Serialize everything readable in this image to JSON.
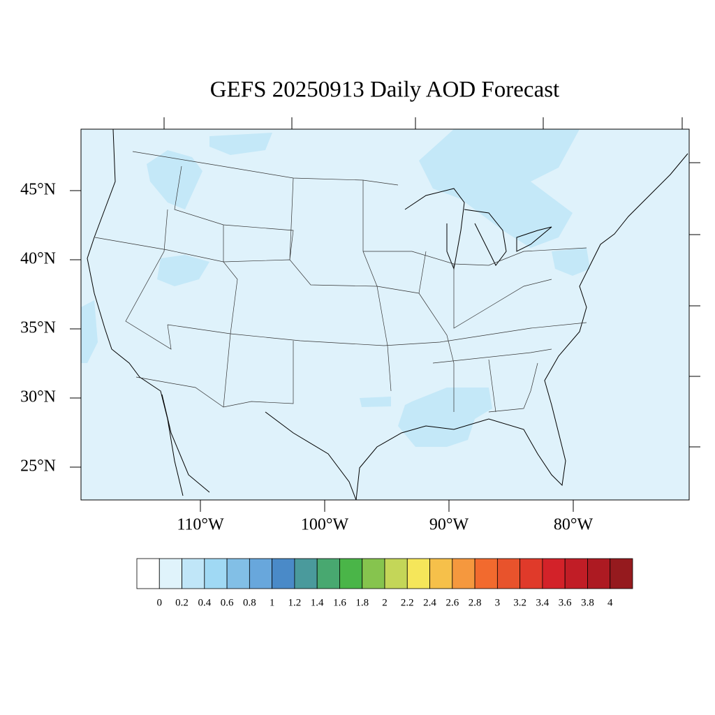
{
  "title": "GEFS 20250913 Daily AOD Forecast",
  "map": {
    "lat_labels": [
      "45°N",
      "40°N",
      "35°N",
      "30°N",
      "25°N"
    ],
    "lon_labels": [
      "110°W",
      "100°W",
      "90°W",
      "80°W"
    ]
  },
  "colorbar": {
    "levels": [
      0,
      0.2,
      0.4,
      0.6,
      0.8,
      1,
      1.2,
      1.4,
      1.6,
      1.8,
      2,
      2.2,
      2.4,
      2.6,
      2.8,
      3,
      3.2,
      3.4,
      3.6,
      3.8,
      4
    ],
    "colors": [
      "#ffffff",
      "#e0f3fb",
      "#c0e6f8",
      "#a0d9f4",
      "#82bfe6",
      "#68a7dc",
      "#4a8ac8",
      "#4a9a9c",
      "#48a870",
      "#4ab548",
      "#86c44e",
      "#c4d658",
      "#f5e65a",
      "#f6c04a",
      "#f5983e",
      "#f26a2e",
      "#e8532c",
      "#e03a2a",
      "#d32229",
      "#c11d26",
      "#ad1a22",
      "#951a1e"
    ]
  }
}
